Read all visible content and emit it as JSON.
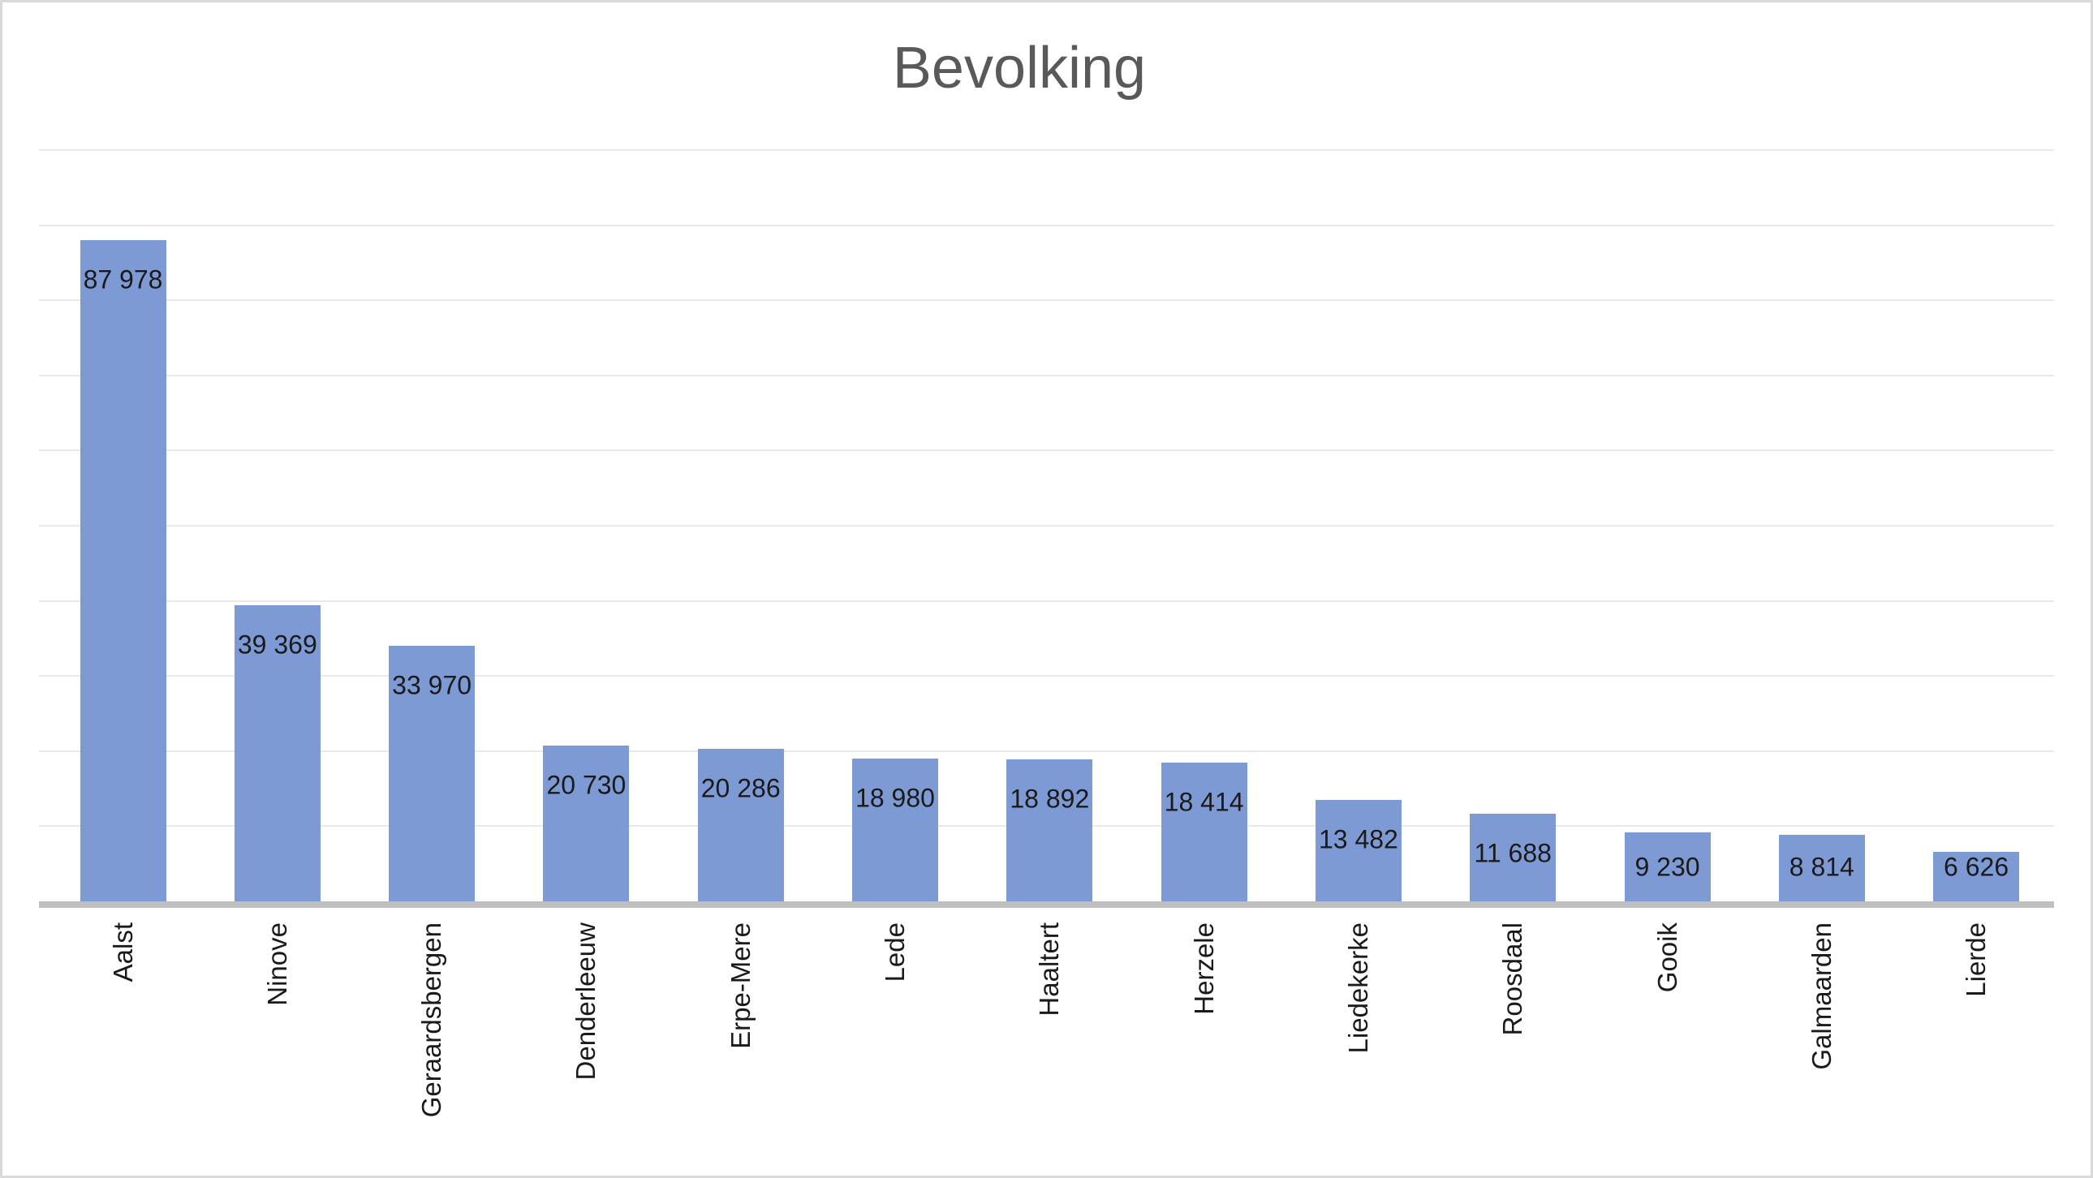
{
  "chart_data": {
    "type": "bar",
    "title": "Bevolking",
    "categories": [
      "Aalst",
      "Ninove",
      "Geraardsbergen",
      "Denderleeuw",
      "Erpe-Mere",
      "Lede",
      "Haaltert",
      "Herzele",
      "Liedekerke",
      "Roosdaal",
      "Gooik",
      "Galmaarden",
      "Lierde"
    ],
    "values": [
      87978,
      39369,
      33970,
      20730,
      20286,
      18980,
      18892,
      18414,
      13482,
      11688,
      9230,
      8814,
      6626
    ],
    "value_labels": [
      "87 978",
      "39 369",
      "33 970",
      "20 730",
      "20 286",
      "18 980",
      "18 892",
      "18 414",
      "13 482",
      "11 688",
      "9 230",
      "8 814",
      "6 626"
    ],
    "xlabel": "",
    "ylabel": "",
    "ylim": [
      0,
      100000
    ],
    "gridline_interval": 10000,
    "grid": true,
    "legend_position": "none",
    "y_axis_tick_labels_visible": false,
    "data_label_position": "inside-end",
    "category_label_rotation_degrees": 90,
    "colors": {
      "bar_fill": "#7E9AD4",
      "title_text": "#595959",
      "gridline": "#E9E9E9",
      "axis_line": "#BFBFBF",
      "label_text": "#1A1A1A",
      "chart_border": "#D9D9D9",
      "background": "#FFFFFF"
    }
  }
}
